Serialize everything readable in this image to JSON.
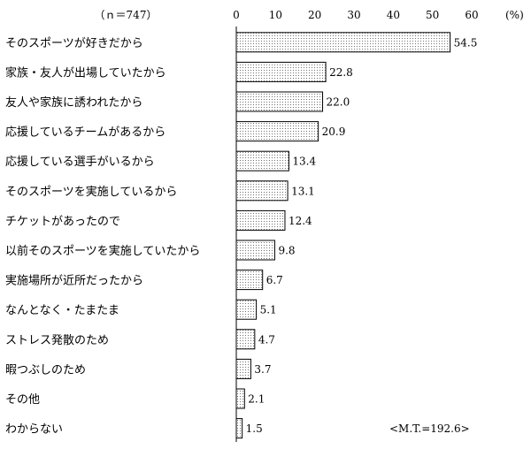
{
  "chart_data": {
    "type": "bar",
    "orientation": "horizontal",
    "sample_label": "（ｎ＝747）",
    "unit_label": "(%)",
    "xlim": [
      0,
      60
    ],
    "ticks": [
      "0",
      "10",
      "20",
      "30",
      "40",
      "50",
      "60"
    ],
    "tick_values": [
      0,
      10,
      20,
      30,
      40,
      50,
      60
    ],
    "categories": [
      "そのスポーツが好きだから",
      "家族・友人が出場していたから",
      "友人や家族に誘われたから",
      "応援しているチームがあるから",
      "応援している選手がいるから",
      "そのスポーツを実施しているから",
      "チケットがあったので",
      "以前そのスポーツを実施していたから",
      "実施場所が近所だったから",
      "なんとなく・たまたま",
      "ストレス発散のため",
      "暇つぶしのため",
      "その他",
      "わからない"
    ],
    "values": [
      54.5,
      22.8,
      22.0,
      20.9,
      13.4,
      13.1,
      12.4,
      9.8,
      6.7,
      5.1,
      4.7,
      3.7,
      2.1,
      1.5
    ],
    "value_labels": [
      "54.5",
      "22.8",
      "22.0",
      "20.9",
      "13.4",
      "13.1",
      "12.4",
      "9.8",
      "6.7",
      "5.1",
      "4.7",
      "3.7",
      "2.1",
      "1.5"
    ],
    "note": "<M.T.=192.6>",
    "bar_fill": "#ffffff",
    "bar_stroke": "#000000",
    "dot_color": "#000000"
  }
}
